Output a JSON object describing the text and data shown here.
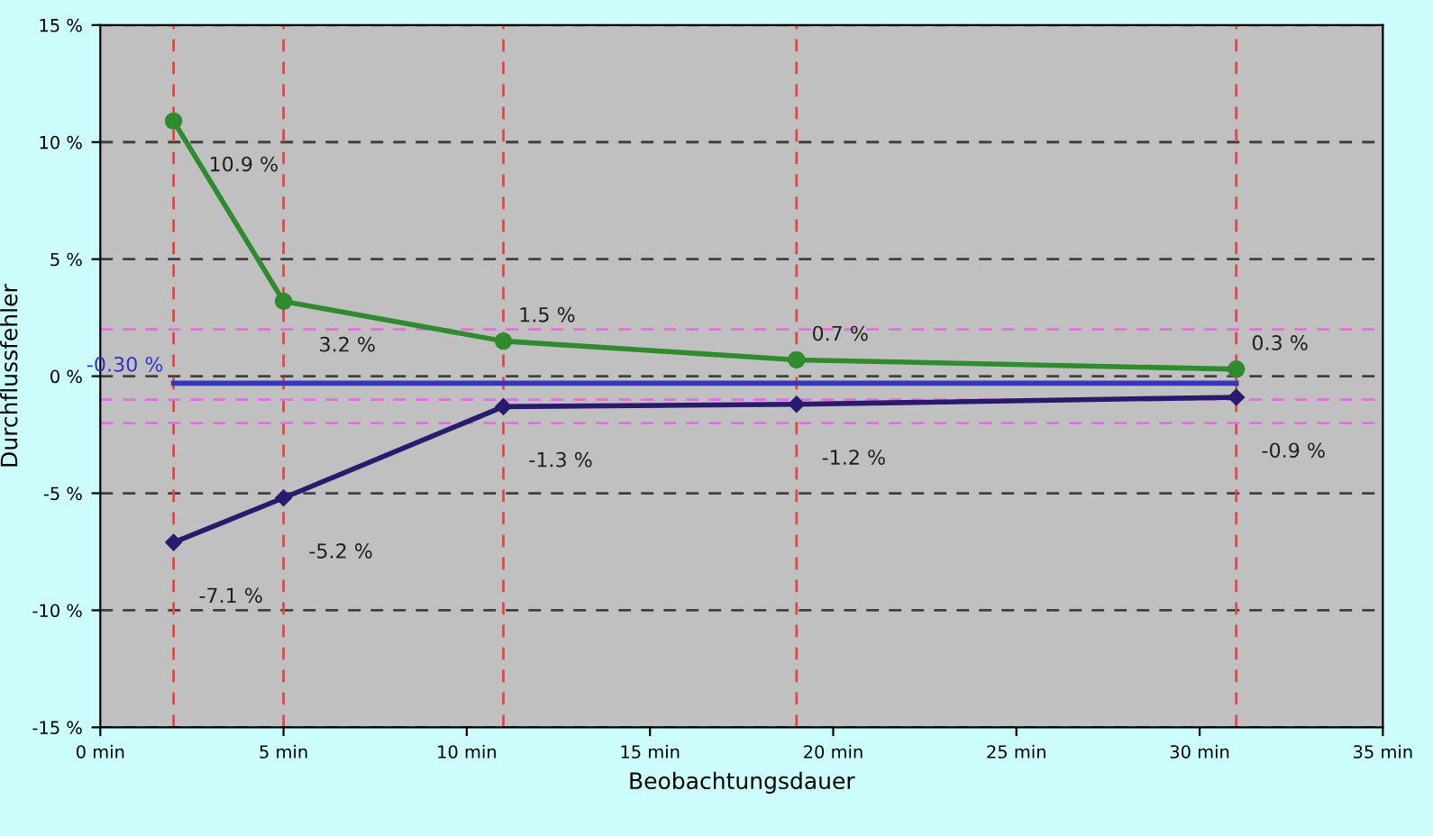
{
  "chart_data": {
    "type": "line",
    "xlabel": "Beobachtungsdauer",
    "ylabel": "Durchflussfehler",
    "xlim": [
      0,
      35
    ],
    "xticks": [
      {
        "value": 0,
        "label": "0 min"
      },
      {
        "value": 5,
        "label": "5 min"
      },
      {
        "value": 10,
        "label": "10 min"
      },
      {
        "value": 15,
        "label": "15 min"
      },
      {
        "value": 20,
        "label": "20 min"
      },
      {
        "value": 25,
        "label": "25 min"
      },
      {
        "value": 30,
        "label": "30 min"
      },
      {
        "value": 35,
        "label": "35 min"
      }
    ],
    "ylim": [
      -15,
      15
    ],
    "yticks": [
      {
        "value": -15,
        "label": "-15 %"
      },
      {
        "value": -10,
        "label": "-10 %"
      },
      {
        "value": -5,
        "label": "-5 %"
      },
      {
        "value": 0,
        "label": "0 %"
      },
      {
        "value": 5,
        "label": "5 %"
      },
      {
        "value": 10,
        "label": "10 %"
      },
      {
        "value": 15,
        "label": "15 %"
      }
    ],
    "grid": "y",
    "legend": false,
    "series": [
      {
        "color": "#2e8b2e",
        "marker": "circle",
        "x": [
          2,
          5,
          11,
          19,
          31
        ],
        "values": [
          10.9,
          3.2,
          1.5,
          0.7,
          0.3
        ],
        "value_labels": [
          "10.9 %",
          "3.2 %",
          "1.5 %",
          "0.7 %",
          "0.3 %"
        ]
      },
      {
        "color": "#2a1a6e",
        "marker": "diamond",
        "x": [
          2,
          5,
          11,
          19,
          31
        ],
        "values": [
          -7.1,
          -5.2,
          -1.3,
          -1.2,
          -0.9
        ],
        "value_labels": [
          "-7.1 %",
          "-5.2 %",
          "-1.3 %",
          "-1.2 %",
          "-0.9 %"
        ]
      },
      {
        "color": "#3535c8",
        "marker": "none",
        "x": [
          2,
          31
        ],
        "values": [
          -0.3,
          -0.3
        ],
        "value_labels": [
          "-0.30 %",
          null
        ]
      }
    ],
    "ref_lines": [
      {
        "axis": "x",
        "value": 2,
        "color": "#e04848",
        "line_style": "dashed"
      },
      {
        "axis": "x",
        "value": 5,
        "color": "#e04848",
        "line_style": "dashed"
      },
      {
        "axis": "x",
        "value": 11,
        "color": "#e04848",
        "line_style": "dashed"
      },
      {
        "axis": "x",
        "value": 19,
        "color": "#e04848",
        "line_style": "dashed"
      },
      {
        "axis": "x",
        "value": 31,
        "color": "#e04848",
        "line_style": "dashed"
      },
      {
        "axis": "y",
        "value": 2,
        "color": "#e070e0",
        "line_style": "dashed"
      },
      {
        "axis": "y",
        "value": -1,
        "color": "#e070e0",
        "line_style": "dashed"
      },
      {
        "axis": "y",
        "value": -2,
        "color": "#e070e0",
        "line_style": "dashed"
      }
    ]
  }
}
